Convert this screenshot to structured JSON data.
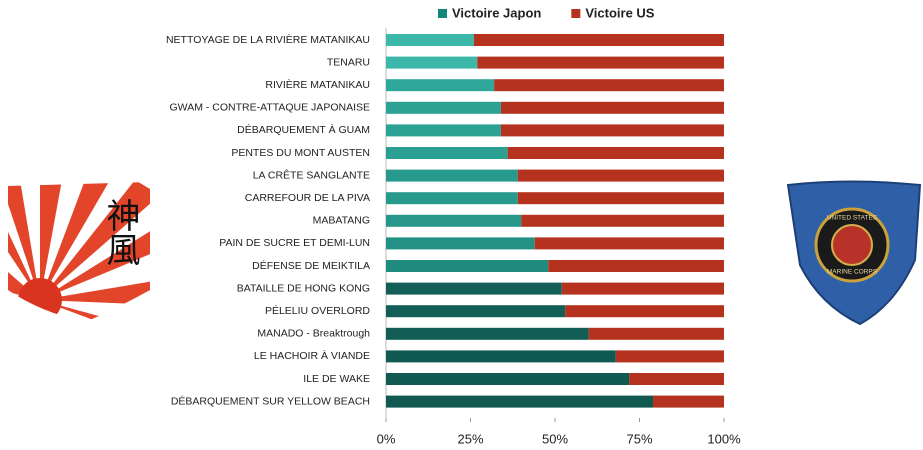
{
  "chart_data": {
    "type": "stacked_barh",
    "categories": [
      "NETTOYAGE DE LA RIVIÈRE MATANIKAU",
      "TENARU",
      "RIVIÈRE MATANIKAU",
      "GWAM - CONTRE-ATTAQUE JAPONAISE",
      "DÉBARQUEMENT À GUAM",
      "PENTES DU MONT AUSTEN",
      "LA CRÊTE SANGLANTE",
      "CARREFOUR DE LA PIVA",
      "MABATANG",
      "PAIN DE SUCRE ET DEMI-LUN",
      "DÉFENSE DE MEIKTILA",
      "BATAILLE DE HONG KONG",
      "PÉLELIU OVERLORD",
      "MANADO - Breaktrough",
      "LE HACHOIR À VIANDE",
      "ILE DE WAKE",
      "DÉBARQUEMENT SUR YELLOW BEACH"
    ],
    "series": [
      {
        "name": "Victoire Japon",
        "color": "#13857a",
        "colors": [
          "#3cb8ab",
          "#3cb8ab",
          "#2fa89b",
          "#2ba294",
          "#2ba294",
          "#2a9f92",
          "#279a8d",
          "#279a8d",
          "#26978a",
          "#239186",
          "#208c80",
          "#135f57",
          "#135f57",
          "#125c54",
          "#115a52",
          "#115a52",
          "#105850"
        ],
        "values": [
          26,
          27,
          32,
          34,
          34,
          36,
          39,
          39,
          40,
          44,
          48,
          52,
          53,
          60,
          68,
          72,
          79
        ]
      },
      {
        "name": "Victoire US",
        "color": "#b5321e",
        "values": [
          74,
          73,
          68,
          66,
          66,
          64,
          61,
          61,
          60,
          56,
          52,
          48,
          47,
          40,
          32,
          28,
          21
        ]
      }
    ],
    "xlim": [
      0,
      100
    ],
    "xticks": [
      {
        "value": 0,
        "label": "0%"
      },
      {
        "value": 25,
        "label": "25%"
      },
      {
        "value": 50,
        "label": "50%"
      },
      {
        "value": 75,
        "label": "75%"
      },
      {
        "value": 100,
        "label": "100%"
      }
    ],
    "grid": false,
    "legend": "top"
  },
  "emblems": {
    "left": "神風",
    "right_top": "UNITED STATES",
    "right_bottom": "MARINE CORPS"
  }
}
